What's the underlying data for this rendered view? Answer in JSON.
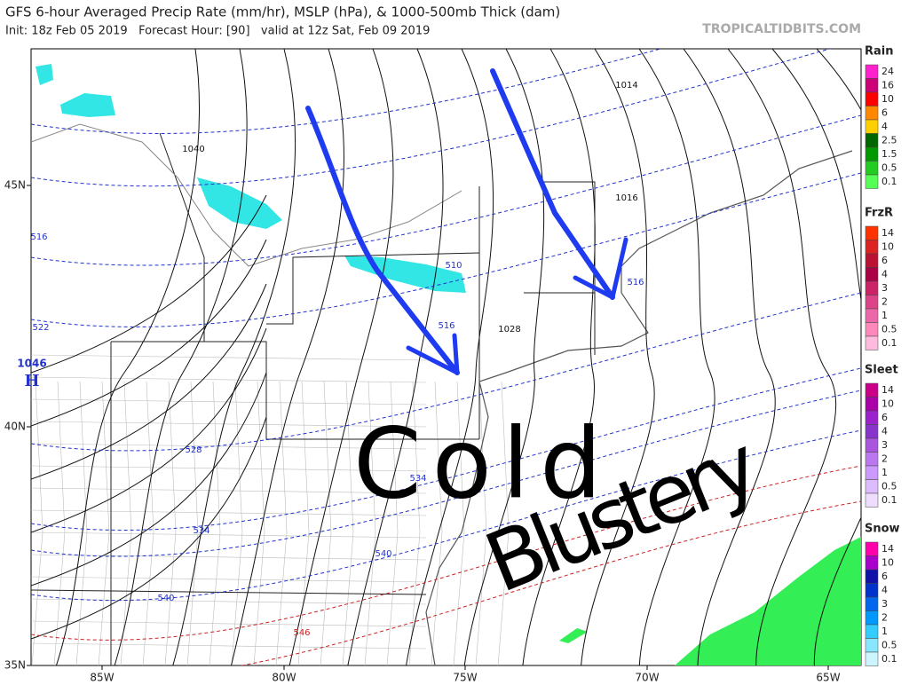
{
  "header": {
    "title": "GFS 6-hour Averaged Precip Rate (mm/hr), MSLP (hPa), & 1000-500mb Thick (dam)",
    "subtitle": "Init: 18z Feb 05 2019   Forecast Hour: [90]   valid at 12z Sat, Feb 09 2019",
    "credit": "TROPICALTIDBITS.COM"
  },
  "map": {
    "lon_labels": [
      "85W",
      "80W",
      "75W",
      "70W",
      "65W"
    ],
    "lat_labels": [
      "45N",
      "40N",
      "35N"
    ],
    "pressure_labels": [
      "1014",
      "1040",
      "1016",
      "1028",
      "1046"
    ],
    "high_marker": "H",
    "thickness_labels": [
      "510",
      "516",
      "516",
      "516",
      "522",
      "528",
      "534",
      "534",
      "540",
      "540",
      "546"
    ],
    "annotations": [
      "Cold",
      "Blustery"
    ]
  },
  "legend": [
    {
      "title": "Rain",
      "labels": [
        "24",
        "16",
        "10",
        "6",
        "4",
        "2.5",
        "1.5",
        "0.5",
        "0.1"
      ]
    },
    {
      "title": "FrzR",
      "labels": [
        "14",
        "10",
        "6",
        "4",
        "3",
        "2",
        "1",
        "0.5",
        "0.1"
      ]
    },
    {
      "title": "Sleet",
      "labels": [
        "14",
        "10",
        "6",
        "4",
        "3",
        "2",
        "1",
        "0.5",
        "0.1"
      ]
    },
    {
      "title": "Snow",
      "labels": [
        "14",
        "10",
        "6",
        "4",
        "3",
        "2",
        "1",
        "0.5",
        "0.1"
      ]
    }
  ]
}
